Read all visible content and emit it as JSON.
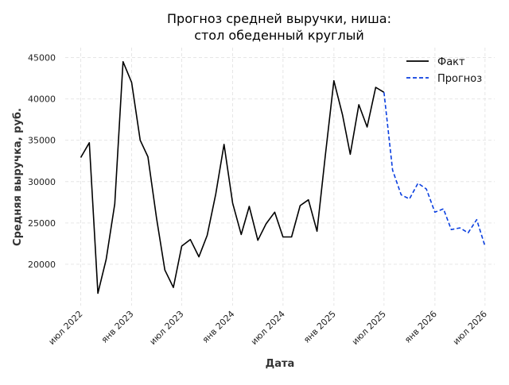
{
  "chart_data": {
    "type": "line",
    "title_line1": "Прогноз средней выручки, ниша:",
    "title_line2": "стол обеденный круглый",
    "xlabel": "Дата",
    "ylabel": "Средняя выручка, руб.",
    "ylim": [
      15000,
      46200
    ],
    "yticks": [
      20000,
      25000,
      30000,
      35000,
      40000,
      45000
    ],
    "ytick_labels": [
      "20000",
      "25000",
      "30000",
      "35000",
      "40000",
      "45000"
    ],
    "xlim": [
      "2022-05-06",
      "2026-08-05"
    ],
    "xticks": [
      {
        "date": "2022-07-01",
        "label": "июл 2022"
      },
      {
        "date": "2023-01-01",
        "label": "янв 2023"
      },
      {
        "date": "2023-07-01",
        "label": "июл 2023"
      },
      {
        "date": "2024-01-01",
        "label": "янв 2024"
      },
      {
        "date": "2024-07-01",
        "label": "июл 2024"
      },
      {
        "date": "2025-01-01",
        "label": "янв 2025"
      },
      {
        "date": "2025-07-01",
        "label": "июл 2025"
      },
      {
        "date": "2026-01-01",
        "label": "янв 2026"
      },
      {
        "date": "2026-07-01",
        "label": "июл 2026"
      }
    ],
    "grid": true,
    "legend_position": "top-right",
    "series": [
      {
        "name": "Факт",
        "color": "#000000",
        "style": "solid",
        "x": [
          "2022-07-01",
          "2022-08-01",
          "2022-09-01",
          "2022-10-01",
          "2022-11-01",
          "2022-12-01",
          "2023-01-01",
          "2023-02-01",
          "2023-03-01",
          "2023-04-01",
          "2023-05-01",
          "2023-06-01",
          "2023-07-01",
          "2023-08-01",
          "2023-09-01",
          "2023-10-01",
          "2023-11-01",
          "2023-12-01",
          "2024-01-01",
          "2024-02-01",
          "2024-03-01",
          "2024-04-01",
          "2024-05-01",
          "2024-06-01",
          "2024-07-01",
          "2024-08-01",
          "2024-09-01",
          "2024-10-01",
          "2024-11-01",
          "2024-12-01",
          "2025-01-01",
          "2025-02-01",
          "2025-03-01",
          "2025-04-01",
          "2025-05-01",
          "2025-06-01",
          "2025-07-01"
        ],
        "values": [
          32900,
          34700,
          16500,
          20600,
          27300,
          44500,
          42000,
          35000,
          33000,
          25600,
          19300,
          17200,
          22200,
          23000,
          20900,
          23500,
          28500,
          34500,
          27400,
          23600,
          27000,
          22900,
          24900,
          26300,
          23300,
          23300,
          27100,
          27800,
          24000,
          33200,
          42200,
          38100,
          33300,
          39300,
          36600,
          41400,
          40800
        ]
      },
      {
        "name": "Прогноз",
        "color": "#0a3fe0",
        "style": "dashed",
        "x": [
          "2025-07-01",
          "2025-08-01",
          "2025-09-01",
          "2025-10-01",
          "2025-11-01",
          "2025-12-01",
          "2026-01-01",
          "2026-02-01",
          "2026-03-01",
          "2026-04-01",
          "2026-05-01",
          "2026-06-01",
          "2026-07-01"
        ],
        "values": [
          40800,
          31400,
          28400,
          27900,
          29800,
          29100,
          26300,
          26700,
          24200,
          24400,
          23800,
          25400,
          22200
        ]
      }
    ]
  }
}
